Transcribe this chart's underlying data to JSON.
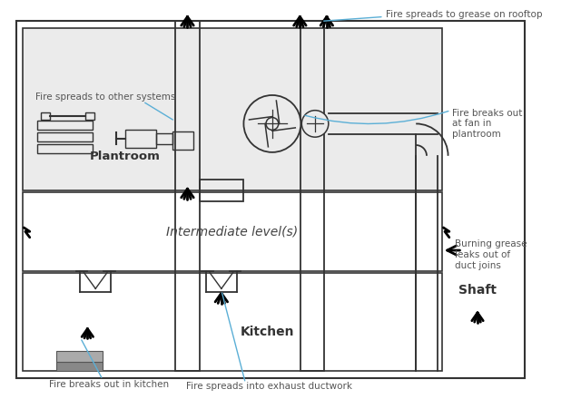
{
  "line_color": "#333333",
  "annotation_color": "#5bafd6",
  "labels": {
    "plantroom": "Plantroom",
    "intermediate": "Intermediate level(s)",
    "kitchen": "Kitchen",
    "shaft": "Shaft",
    "fire_other": "Fire spreads to other systems",
    "fire_rooftop": "Fire spreads to grease on rooftop",
    "fire_fan": "Fire breaks out\nat fan in\nplantroom",
    "burning_grease": "Burning grease\nleaks out of\nduct joins",
    "fire_kitchen": "Fire breaks out in kitchen",
    "fire_ductwork": "Fire spreads into exhaust ductwork"
  }
}
